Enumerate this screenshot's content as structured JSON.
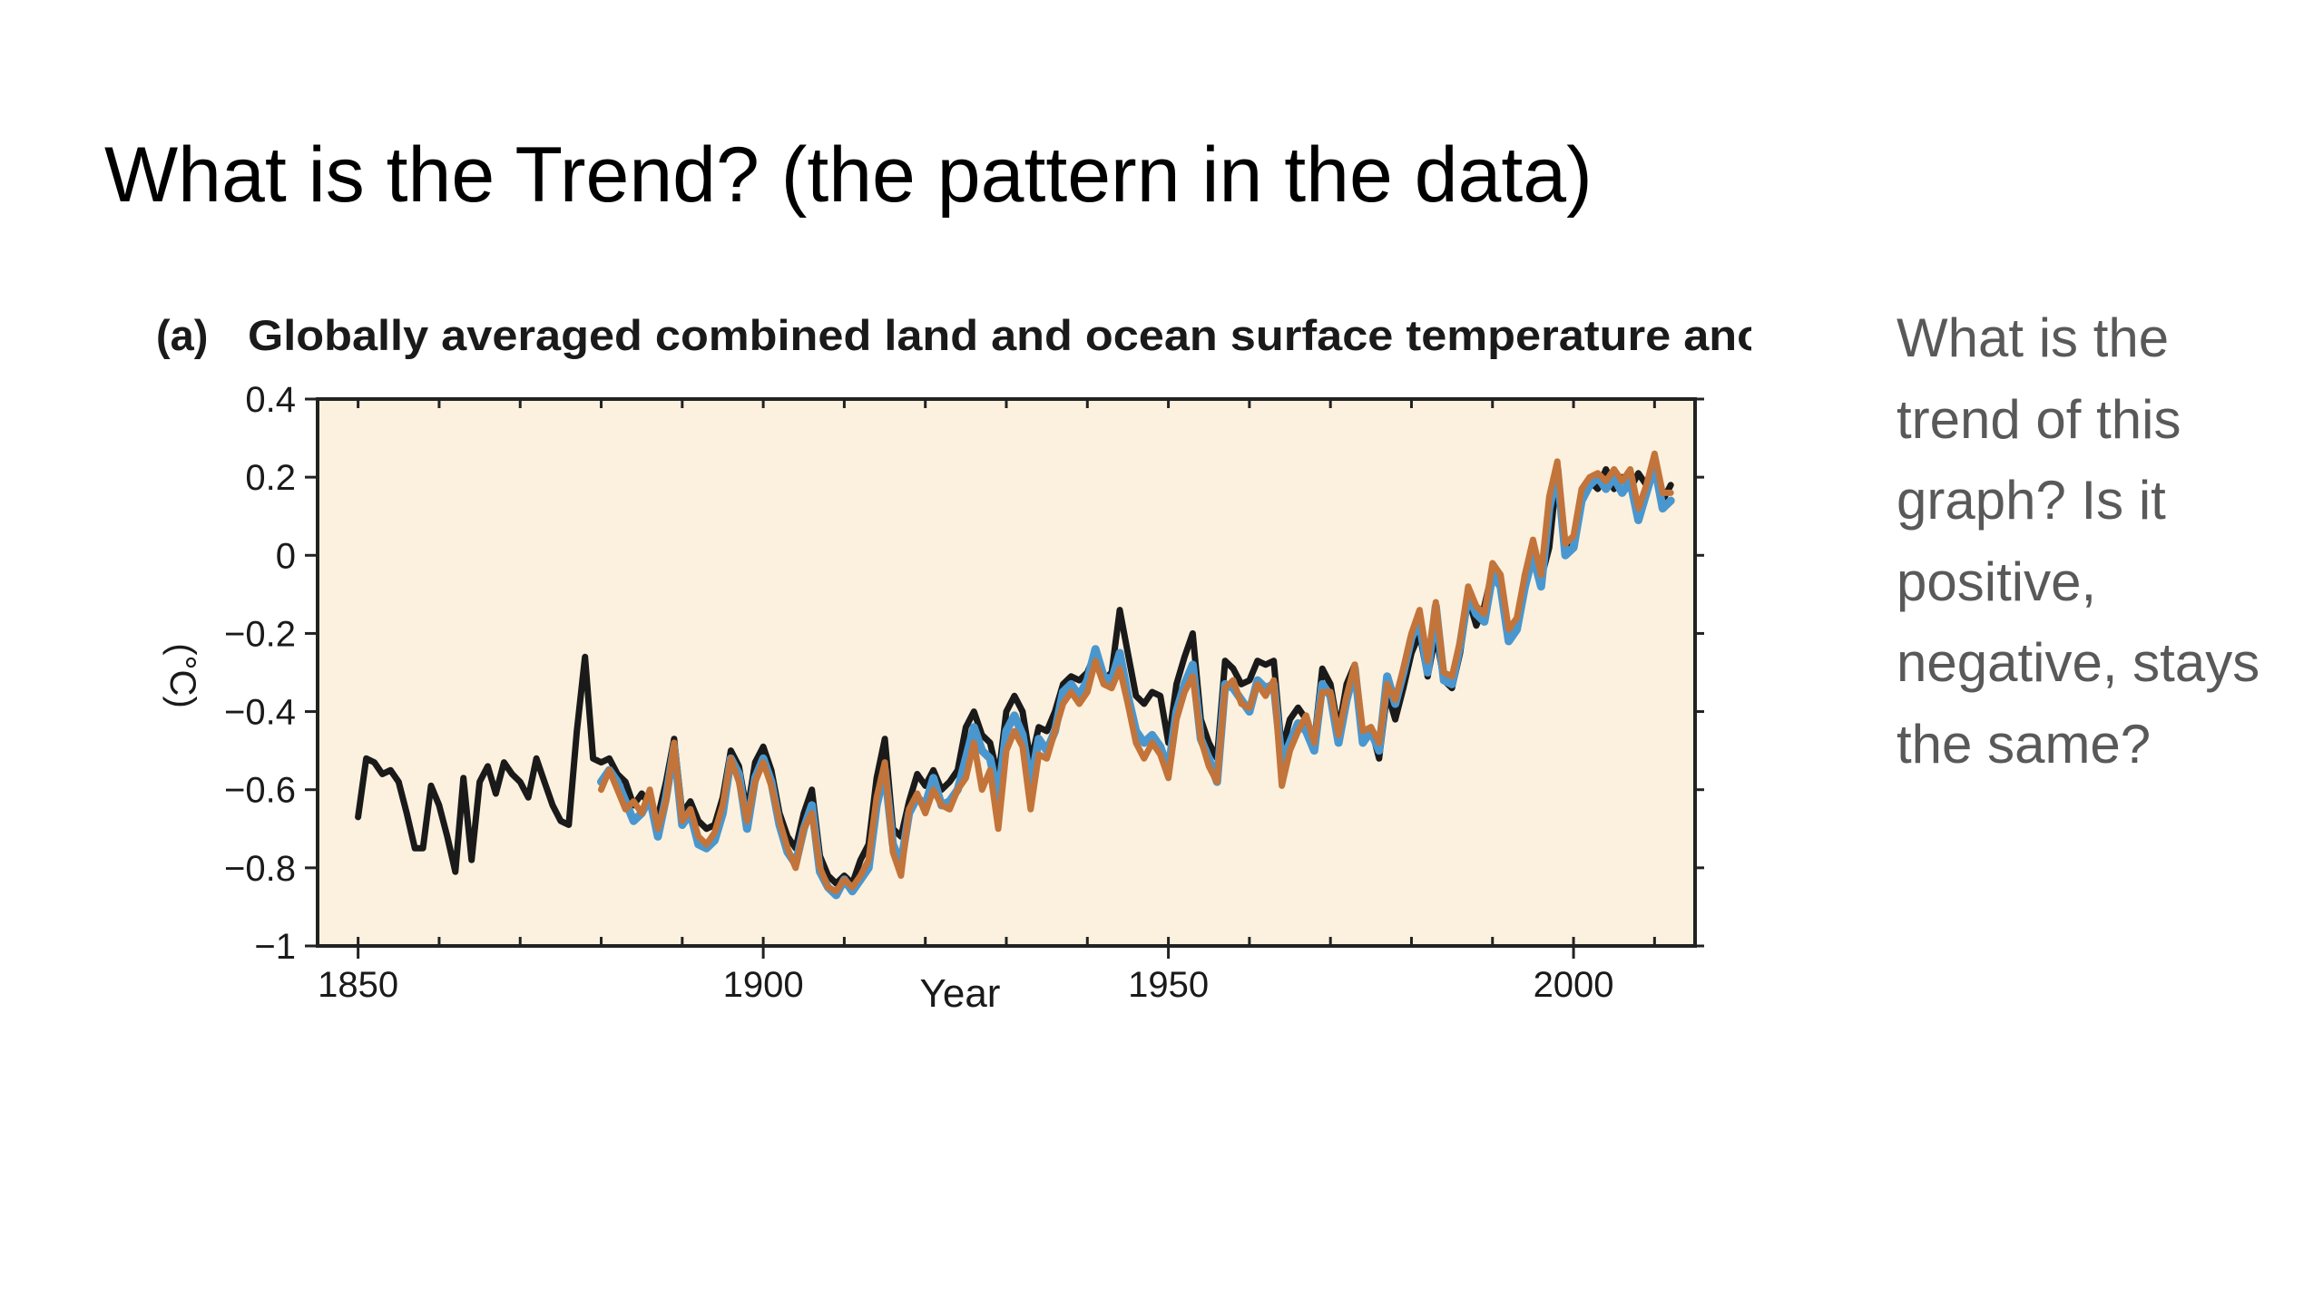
{
  "slide": {
    "title": "What is the Trend? (the pattern in the data)",
    "question": "What is the trend of this graph? Is it positive, negative, stays the same?"
  },
  "colors": {
    "plot_background": "#fcf1de",
    "observed_black": "#1a1a1a",
    "series_blue": "#4a97cf",
    "series_orange": "#c2743b",
    "axis": "#222222",
    "question_text": "#595959"
  },
  "chart_data": {
    "type": "line",
    "panel_label": "(a)",
    "title": "Globally averaged combined land and ocean surface temperature anomaly",
    "xlabel": "Year",
    "ylabel": "(°C)",
    "xlim": [
      1845,
      2015
    ],
    "ylim": [
      -1,
      0.4
    ],
    "xticks": [
      1850,
      1900,
      1950,
      2000
    ],
    "xtick_labels": [
      "1850",
      "1900",
      "1950",
      "2000"
    ],
    "yticks": [
      0.4,
      0.2,
      0,
      -0.2,
      -0.4,
      -0.6,
      -0.8,
      -1
    ],
    "ytick_labels": [
      "0.4",
      "0.2",
      "0",
      "−0.2",
      "−0.4",
      "−0.6",
      "−0.8",
      "−1"
    ],
    "grid": false,
    "legend": "none",
    "series": [
      {
        "color": "#1a1a1a",
        "x": [
          1850,
          1851,
          1852,
          1853,
          1854,
          1855,
          1856,
          1857,
          1858,
          1859,
          1860,
          1861,
          1862,
          1863,
          1864,
          1865,
          1866,
          1867,
          1868,
          1869,
          1870,
          1871,
          1872,
          1873,
          1874,
          1875,
          1876,
          1877,
          1878,
          1879,
          1880,
          1881,
          1882,
          1883,
          1884,
          1885,
          1886,
          1887,
          1888,
          1889,
          1890,
          1891,
          1892,
          1893,
          1894,
          1895,
          1896,
          1897,
          1898,
          1899,
          1900,
          1901,
          1902,
          1903,
          1904,
          1905,
          1906,
          1907,
          1908,
          1909,
          1910,
          1911,
          1912,
          1913,
          1914,
          1915,
          1916,
          1917,
          1918,
          1919,
          1920,
          1921,
          1922,
          1923,
          1924,
          1925,
          1926,
          1927,
          1928,
          1929,
          1930,
          1931,
          1932,
          1933,
          1934,
          1935,
          1936,
          1937,
          1938,
          1939,
          1940,
          1941,
          1942,
          1943,
          1944,
          1945,
          1946,
          1947,
          1948,
          1949,
          1950,
          1951,
          1952,
          1953,
          1954,
          1955,
          1956,
          1957,
          1958,
          1959,
          1960,
          1961,
          1962,
          1963,
          1964,
          1965,
          1966,
          1967,
          1968,
          1969,
          1970,
          1971,
          1972,
          1973,
          1974,
          1975,
          1976,
          1977,
          1978,
          1979,
          1980,
          1981,
          1982,
          1983,
          1984,
          1985,
          1986,
          1987,
          1988,
          1989,
          1990,
          1991,
          1992,
          1993,
          1994,
          1995,
          1996,
          1997,
          1998,
          1999,
          2000,
          2001,
          2002,
          2003,
          2004,
          2005,
          2006,
          2007,
          2008,
          2009,
          2010,
          2011,
          2012
        ],
        "y": [
          -0.67,
          -0.52,
          -0.53,
          -0.56,
          -0.55,
          -0.58,
          -0.66,
          -0.75,
          -0.75,
          -0.59,
          -0.64,
          -0.72,
          -0.81,
          -0.57,
          -0.78,
          -0.58,
          -0.54,
          -0.61,
          -0.53,
          -0.56,
          -0.58,
          -0.62,
          -0.52,
          -0.58,
          -0.64,
          -0.68,
          -0.69,
          -0.45,
          -0.26,
          -0.52,
          -0.53,
          -0.52,
          -0.56,
          -0.58,
          -0.64,
          -0.61,
          -0.64,
          -0.67,
          -0.58,
          -0.47,
          -0.66,
          -0.63,
          -0.68,
          -0.7,
          -0.69,
          -0.62,
          -0.5,
          -0.54,
          -0.66,
          -0.53,
          -0.49,
          -0.55,
          -0.66,
          -0.72,
          -0.75,
          -0.66,
          -0.6,
          -0.77,
          -0.82,
          -0.84,
          -0.82,
          -0.84,
          -0.78,
          -0.74,
          -0.57,
          -0.47,
          -0.7,
          -0.72,
          -0.63,
          -0.56,
          -0.59,
          -0.55,
          -0.6,
          -0.58,
          -0.55,
          -0.44,
          -0.4,
          -0.46,
          -0.48,
          -0.57,
          -0.4,
          -0.36,
          -0.4,
          -0.53,
          -0.44,
          -0.45,
          -0.4,
          -0.33,
          -0.31,
          -0.32,
          -0.3,
          -0.25,
          -0.32,
          -0.3,
          -0.14,
          -0.25,
          -0.36,
          -0.38,
          -0.35,
          -0.36,
          -0.48,
          -0.33,
          -0.26,
          -0.2,
          -0.42,
          -0.48,
          -0.52,
          -0.27,
          -0.29,
          -0.33,
          -0.32,
          -0.27,
          -0.28,
          -0.27,
          -0.5,
          -0.42,
          -0.39,
          -0.42,
          -0.48,
          -0.29,
          -0.33,
          -0.45,
          -0.33,
          -0.28,
          -0.47,
          -0.44,
          -0.52,
          -0.35,
          -0.42,
          -0.34,
          -0.25,
          -0.2,
          -0.31,
          -0.2,
          -0.32,
          -0.34,
          -0.25,
          -0.11,
          -0.18,
          -0.13,
          -0.04,
          -0.06,
          -0.21,
          -0.18,
          -0.05,
          0.03,
          -0.06,
          0.02,
          0.22,
          0.02,
          0.04,
          0.16,
          0.19,
          0.17,
          0.22,
          0.17,
          0.2,
          0.17,
          0.21,
          0.18,
          0.25,
          0.14,
          0.18
        ]
      },
      {
        "color": "#4a97cf",
        "x": [
          1880,
          1881,
          1882,
          1883,
          1884,
          1885,
          1886,
          1887,
          1888,
          1889,
          1890,
          1891,
          1892,
          1893,
          1894,
          1895,
          1896,
          1897,
          1898,
          1899,
          1900,
          1901,
          1902,
          1903,
          1904,
          1905,
          1906,
          1907,
          1908,
          1909,
          1910,
          1911,
          1912,
          1913,
          1914,
          1915,
          1916,
          1917,
          1918,
          1919,
          1920,
          1921,
          1922,
          1923,
          1924,
          1925,
          1926,
          1927,
          1928,
          1929,
          1930,
          1931,
          1932,
          1933,
          1934,
          1935,
          1936,
          1937,
          1938,
          1939,
          1940,
          1941,
          1942,
          1943,
          1944,
          1945,
          1946,
          1947,
          1948,
          1949,
          1950,
          1951,
          1952,
          1953,
          1954,
          1955,
          1956,
          1957,
          1958,
          1959,
          1960,
          1961,
          1962,
          1963,
          1964,
          1965,
          1966,
          1967,
          1968,
          1969,
          1970,
          1971,
          1972,
          1973,
          1974,
          1975,
          1976,
          1977,
          1978,
          1979,
          1980,
          1981,
          1982,
          1983,
          1984,
          1985,
          1986,
          1987,
          1988,
          1989,
          1990,
          1991,
          1992,
          1993,
          1994,
          1995,
          1996,
          1997,
          1998,
          1999,
          2000,
          2001,
          2002,
          2003,
          2004,
          2005,
          2006,
          2007,
          2008,
          2009,
          2010,
          2011,
          2012
        ],
        "y": [
          -0.58,
          -0.55,
          -0.58,
          -0.63,
          -0.68,
          -0.66,
          -0.62,
          -0.72,
          -0.62,
          -0.49,
          -0.69,
          -0.66,
          -0.74,
          -0.75,
          -0.73,
          -0.66,
          -0.52,
          -0.56,
          -0.7,
          -0.57,
          -0.52,
          -0.58,
          -0.69,
          -0.76,
          -0.79,
          -0.7,
          -0.64,
          -0.81,
          -0.85,
          -0.87,
          -0.83,
          -0.86,
          -0.83,
          -0.8,
          -0.64,
          -0.55,
          -0.74,
          -0.79,
          -0.66,
          -0.62,
          -0.64,
          -0.57,
          -0.64,
          -0.63,
          -0.6,
          -0.52,
          -0.44,
          -0.5,
          -0.52,
          -0.62,
          -0.45,
          -0.41,
          -0.46,
          -0.59,
          -0.47,
          -0.5,
          -0.45,
          -0.35,
          -0.33,
          -0.36,
          -0.32,
          -0.24,
          -0.31,
          -0.32,
          -0.25,
          -0.36,
          -0.45,
          -0.48,
          -0.46,
          -0.49,
          -0.55,
          -0.4,
          -0.33,
          -0.28,
          -0.47,
          -0.52,
          -0.58,
          -0.33,
          -0.34,
          -0.37,
          -0.4,
          -0.32,
          -0.34,
          -0.33,
          -0.53,
          -0.48,
          -0.43,
          -0.45,
          -0.5,
          -0.33,
          -0.36,
          -0.48,
          -0.37,
          -0.29,
          -0.48,
          -0.45,
          -0.5,
          -0.31,
          -0.38,
          -0.3,
          -0.21,
          -0.17,
          -0.3,
          -0.13,
          -0.32,
          -0.33,
          -0.23,
          -0.1,
          -0.15,
          -0.17,
          -0.05,
          -0.08,
          -0.22,
          -0.19,
          -0.08,
          0.0,
          -0.08,
          0.12,
          0.22,
          0.0,
          0.02,
          0.14,
          0.18,
          0.2,
          0.17,
          0.2,
          0.16,
          0.19,
          0.09,
          0.16,
          0.23,
          0.12,
          0.14
        ]
      },
      {
        "color": "#c2743b",
        "x": [
          1880,
          1881,
          1882,
          1883,
          1884,
          1885,
          1886,
          1887,
          1888,
          1889,
          1890,
          1891,
          1892,
          1893,
          1894,
          1895,
          1896,
          1897,
          1898,
          1899,
          1900,
          1901,
          1902,
          1903,
          1904,
          1905,
          1906,
          1907,
          1908,
          1909,
          1910,
          1911,
          1912,
          1913,
          1914,
          1915,
          1916,
          1917,
          1918,
          1919,
          1920,
          1921,
          1922,
          1923,
          1924,
          1925,
          1926,
          1927,
          1928,
          1929,
          1930,
          1931,
          1932,
          1933,
          1934,
          1935,
          1936,
          1937,
          1938,
          1939,
          1940,
          1941,
          1942,
          1943,
          1944,
          1945,
          1946,
          1947,
          1948,
          1949,
          1950,
          1951,
          1952,
          1953,
          1954,
          1955,
          1956,
          1957,
          1958,
          1959,
          1960,
          1961,
          1962,
          1963,
          1964,
          1965,
          1966,
          1967,
          1968,
          1969,
          1970,
          1971,
          1972,
          1973,
          1974,
          1975,
          1976,
          1977,
          1978,
          1979,
          1980,
          1981,
          1982,
          1983,
          1984,
          1985,
          1986,
          1987,
          1988,
          1989,
          1990,
          1991,
          1992,
          1993,
          1994,
          1995,
          1996,
          1997,
          1998,
          1999,
          2000,
          2001,
          2002,
          2003,
          2004,
          2005,
          2006,
          2007,
          2008,
          2009,
          2010,
          2011,
          2012
        ],
        "y": [
          -0.6,
          -0.55,
          -0.6,
          -0.65,
          -0.63,
          -0.66,
          -0.6,
          -0.7,
          -0.63,
          -0.48,
          -0.68,
          -0.65,
          -0.72,
          -0.74,
          -0.71,
          -0.64,
          -0.52,
          -0.58,
          -0.68,
          -0.58,
          -0.53,
          -0.59,
          -0.68,
          -0.75,
          -0.8,
          -0.7,
          -0.66,
          -0.8,
          -0.85,
          -0.86,
          -0.83,
          -0.85,
          -0.82,
          -0.78,
          -0.62,
          -0.53,
          -0.76,
          -0.82,
          -0.65,
          -0.61,
          -0.66,
          -0.6,
          -0.64,
          -0.65,
          -0.6,
          -0.57,
          -0.48,
          -0.6,
          -0.55,
          -0.7,
          -0.5,
          -0.45,
          -0.49,
          -0.65,
          -0.51,
          -0.52,
          -0.45,
          -0.38,
          -0.35,
          -0.38,
          -0.35,
          -0.27,
          -0.33,
          -0.34,
          -0.29,
          -0.38,
          -0.48,
          -0.52,
          -0.48,
          -0.51,
          -0.57,
          -0.42,
          -0.35,
          -0.31,
          -0.47,
          -0.54,
          -0.58,
          -0.34,
          -0.32,
          -0.38,
          -0.39,
          -0.33,
          -0.36,
          -0.32,
          -0.59,
          -0.5,
          -0.45,
          -0.41,
          -0.48,
          -0.35,
          -0.35,
          -0.46,
          -0.36,
          -0.28,
          -0.45,
          -0.44,
          -0.48,
          -0.33,
          -0.37,
          -0.29,
          -0.2,
          -0.14,
          -0.27,
          -0.12,
          -0.3,
          -0.31,
          -0.22,
          -0.08,
          -0.13,
          -0.15,
          -0.02,
          -0.05,
          -0.19,
          -0.16,
          -0.05,
          0.04,
          -0.05,
          0.15,
          0.24,
          0.03,
          0.05,
          0.17,
          0.2,
          0.21,
          0.19,
          0.22,
          0.19,
          0.22,
          0.12,
          0.18,
          0.26,
          0.16,
          0.16
        ]
      }
    ]
  }
}
